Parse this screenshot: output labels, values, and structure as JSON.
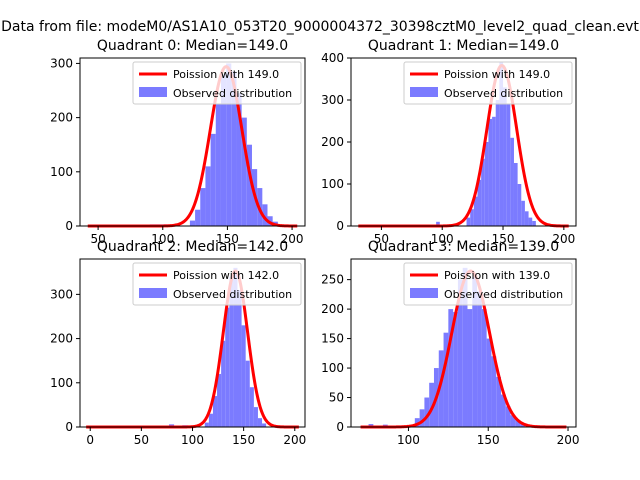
{
  "figure": {
    "suptitle": "Data from file: modeM0/AS1A10_053T20_9000004372_30398cztM0_level2_quad_clean.evt"
  },
  "colors": {
    "histogram": "#7b7bff",
    "fit_line": "#ff0000",
    "axis": "#000000"
  },
  "chart_data": [
    {
      "type": "bar",
      "title": "Quadrant 0: Median=149.0",
      "xlim": [
        36,
        210
      ],
      "ylim": [
        0,
        310
      ],
      "xticks": [
        50,
        100,
        150,
        200
      ],
      "yticks": [
        0,
        100,
        200,
        300
      ],
      "median": 149.0,
      "line_label": "Poission with 149.0",
      "hist_label": "Observed distribution",
      "bin_start": 121,
      "bin_width": 4,
      "bin_counts": [
        10,
        30,
        70,
        110,
        170,
        225,
        280,
        300,
        285,
        245,
        200,
        150,
        105,
        70,
        40,
        18,
        8
      ],
      "low_bins": [
        [
          90,
          104,
          3
        ]
      ]
    },
    {
      "type": "bar",
      "title": "Quadrant 1: Median=149.0",
      "xlim": [
        25,
        210
      ],
      "ylim": [
        0,
        400
      ],
      "xticks": [
        50,
        100,
        150,
        200
      ],
      "yticks": [
        0,
        100,
        200,
        300,
        400
      ],
      "median": 149.0,
      "line_label": "Poission with 149.0",
      "hist_label": "Observed distribution",
      "bin_start": 120,
      "bin_width": 3,
      "bin_counts": [
        20,
        40,
        70,
        110,
        160,
        200,
        255,
        260,
        300,
        390,
        330,
        290,
        210,
        150,
        100,
        60,
        35,
        20,
        12
      ],
      "low_bins": [
        [
          95,
          98,
          10
        ]
      ]
    },
    {
      "type": "bar",
      "title": "Quadrant 2: Median=142.0",
      "xlim": [
        -10,
        210
      ],
      "ylim": [
        0,
        380
      ],
      "xticks": [
        0,
        50,
        100,
        150,
        200
      ],
      "yticks": [
        0,
        100,
        200,
        300
      ],
      "median": 142.0,
      "line_label": "Poission with 142.0",
      "hist_label": "Observed distribution",
      "bin_start": 112,
      "bin_width": 4,
      "bin_counts": [
        10,
        30,
        70,
        120,
        195,
        270,
        340,
        360,
        310,
        230,
        150,
        90,
        45,
        20,
        8
      ],
      "low_bins": [
        [
          77,
          82,
          6
        ],
        [
          90,
          95,
          4
        ]
      ]
    },
    {
      "type": "bar",
      "title": "Quadrant 3: Median=139.0",
      "xlim": [
        64,
        205
      ],
      "ylim": [
        0,
        285
      ],
      "xticks": [
        100,
        150,
        200
      ],
      "yticks": [
        0,
        50,
        100,
        150,
        200,
        250
      ],
      "median": 139.0,
      "line_label": "Poission with 139.0",
      "hist_label": "Observed distribution",
      "bin_start": 104,
      "bin_width": 3,
      "bin_counts": [
        15,
        30,
        50,
        75,
        100,
        130,
        160,
        200,
        195,
        250,
        270,
        200,
        255,
        230,
        200,
        150,
        120,
        85,
        55,
        35,
        20,
        12,
        6
      ],
      "low_bins": [
        [
          75,
          78,
          5
        ],
        [
          84,
          87,
          4
        ]
      ]
    }
  ]
}
